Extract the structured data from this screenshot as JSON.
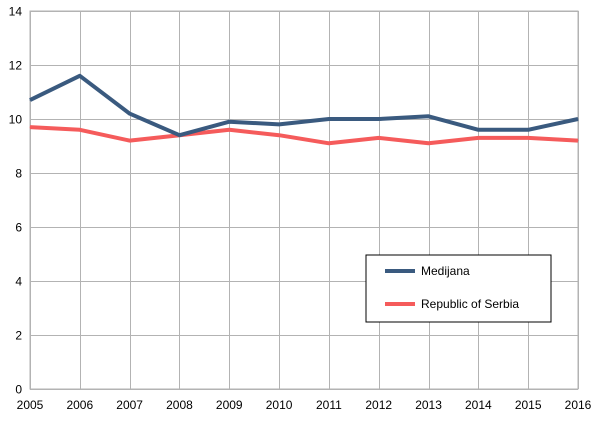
{
  "chart_data": {
    "type": "line",
    "title": "",
    "xlabel": "",
    "ylabel": "",
    "x": [
      "2005",
      "2006",
      "2007",
      "2008",
      "2009",
      "2010",
      "2011",
      "2012",
      "2013",
      "2014",
      "2015",
      "2016"
    ],
    "ylim": [
      0,
      14
    ],
    "yticks": [
      "0",
      "2",
      "4",
      "6",
      "8",
      "10",
      "12",
      "14"
    ],
    "grid": true,
    "legend_position": "lower-right",
    "series": [
      {
        "name": "Medijana",
        "color": "#3a5a7f",
        "values": [
          10.7,
          11.6,
          10.2,
          9.4,
          9.9,
          9.8,
          10.0,
          10.0,
          10.1,
          9.6,
          9.6,
          10.0
        ]
      },
      {
        "name": "Republic of Serbia",
        "color": "#f55b5b",
        "values": [
          9.7,
          9.6,
          9.2,
          9.4,
          9.6,
          9.4,
          9.1,
          9.3,
          9.1,
          9.3,
          9.3,
          9.2
        ]
      }
    ]
  }
}
